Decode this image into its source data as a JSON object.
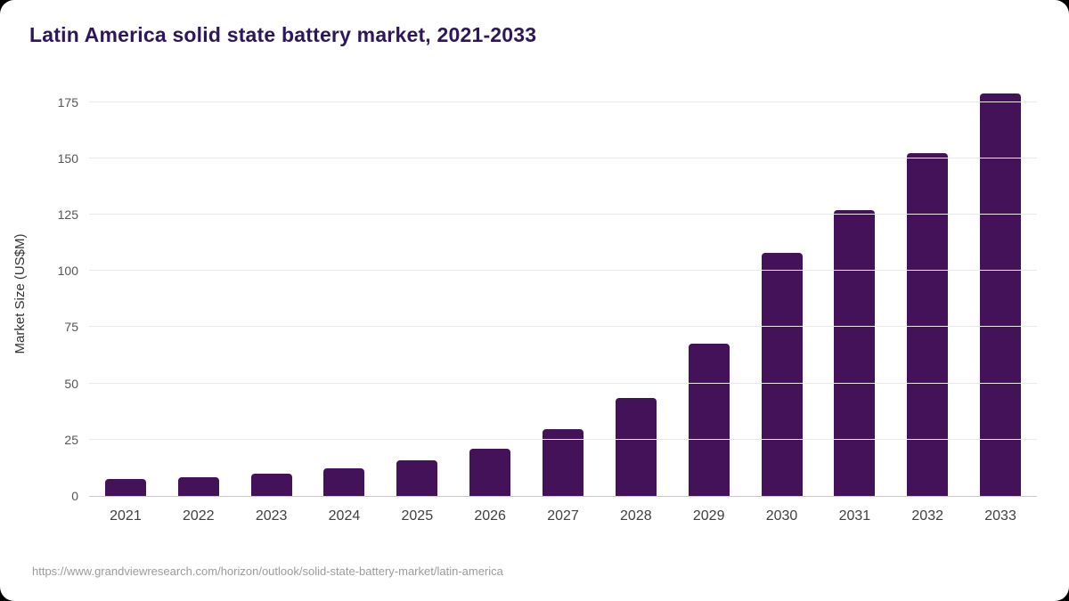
{
  "chart_data": {
    "type": "bar",
    "title": "Latin America solid state battery market, 2021-2033",
    "ylabel": "Market Size (US$M)",
    "xlabel": "",
    "categories": [
      "2021",
      "2022",
      "2023",
      "2024",
      "2025",
      "2026",
      "2027",
      "2028",
      "2029",
      "2030",
      "2031",
      "2032",
      "2033"
    ],
    "values": [
      7.5,
      8.3,
      10,
      12.3,
      15.8,
      21,
      29.8,
      43.5,
      67.5,
      108,
      127,
      152.5,
      179
    ],
    "yticks": [
      0,
      25,
      50,
      75,
      100,
      125,
      150,
      175
    ],
    "ylim": [
      0,
      182
    ],
    "grid": "horizontal",
    "legend": "none"
  },
  "colors": {
    "bar": "#431259",
    "title": "#2e165c",
    "gridline": "#e9e9e9",
    "axis": "#c9c9c9",
    "tick_text": "#555555",
    "source_text": "#9b9b9b"
  },
  "source": {
    "url": "https://www.grandviewresearch.com/horizon/outlook/solid-state-battery-market/latin-america"
  }
}
